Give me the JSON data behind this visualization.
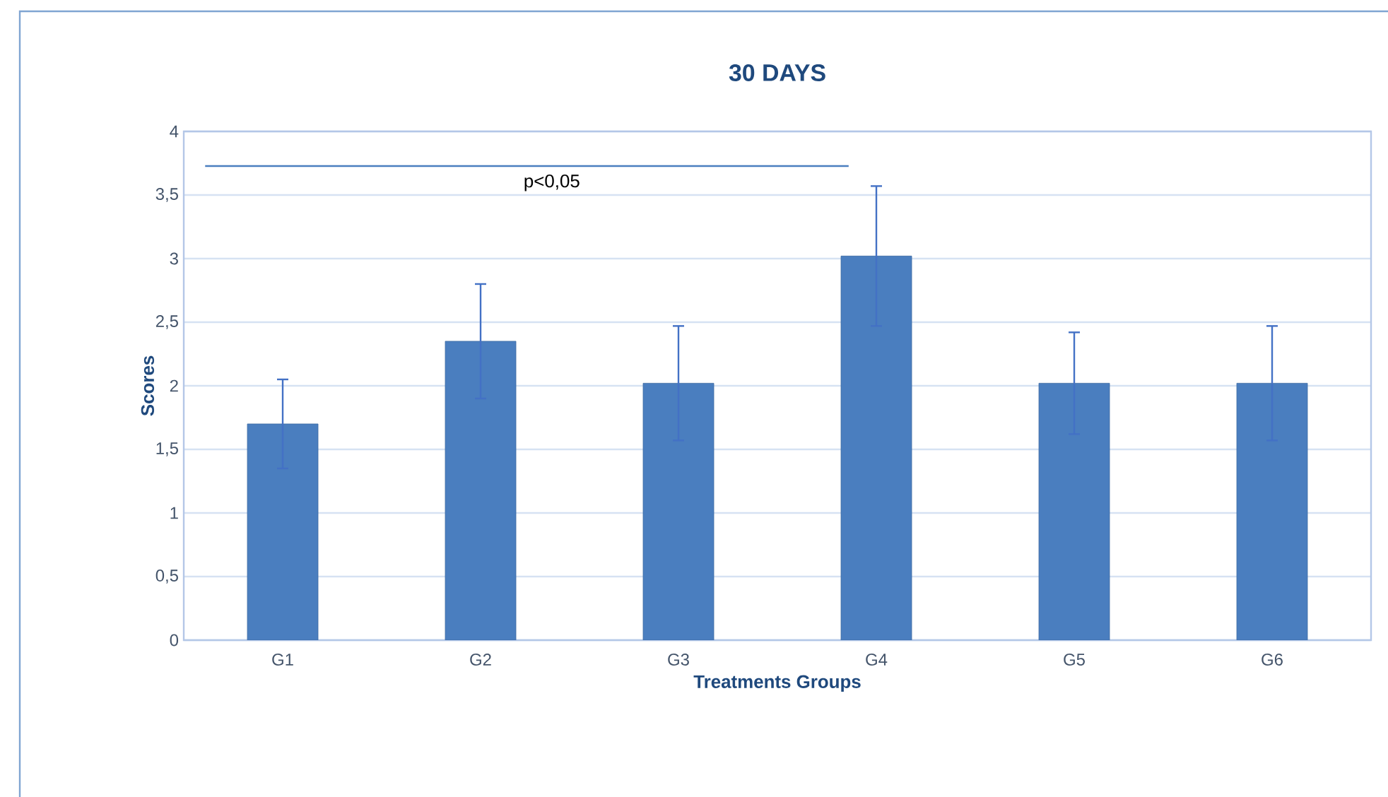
{
  "chart_data": {
    "type": "bar",
    "title": "30 DAYS",
    "xlabel": "Treatments Groups",
    "ylabel": "Scores",
    "categories": [
      "G1",
      "G2",
      "G3",
      "G4",
      "G5",
      "G6"
    ],
    "values": [
      1.7,
      2.35,
      2.02,
      3.02,
      2.02,
      2.02
    ],
    "errors": [
      0.35,
      0.45,
      0.45,
      0.55,
      0.4,
      0.45
    ],
    "color": "#4a7ebf",
    "ylim": [
      0,
      4
    ],
    "yticks": [
      0,
      {
        "value": 0.5,
        "label": "0,5"
      },
      1,
      {
        "value": 1.5,
        "label": "1,5"
      },
      2,
      {
        "value": 2.5,
        "label": "2,5"
      },
      3,
      {
        "value": 3.5,
        "label": "3,5"
      },
      4
    ],
    "grid": "y",
    "annotations": [
      "p<0,05"
    ]
  }
}
